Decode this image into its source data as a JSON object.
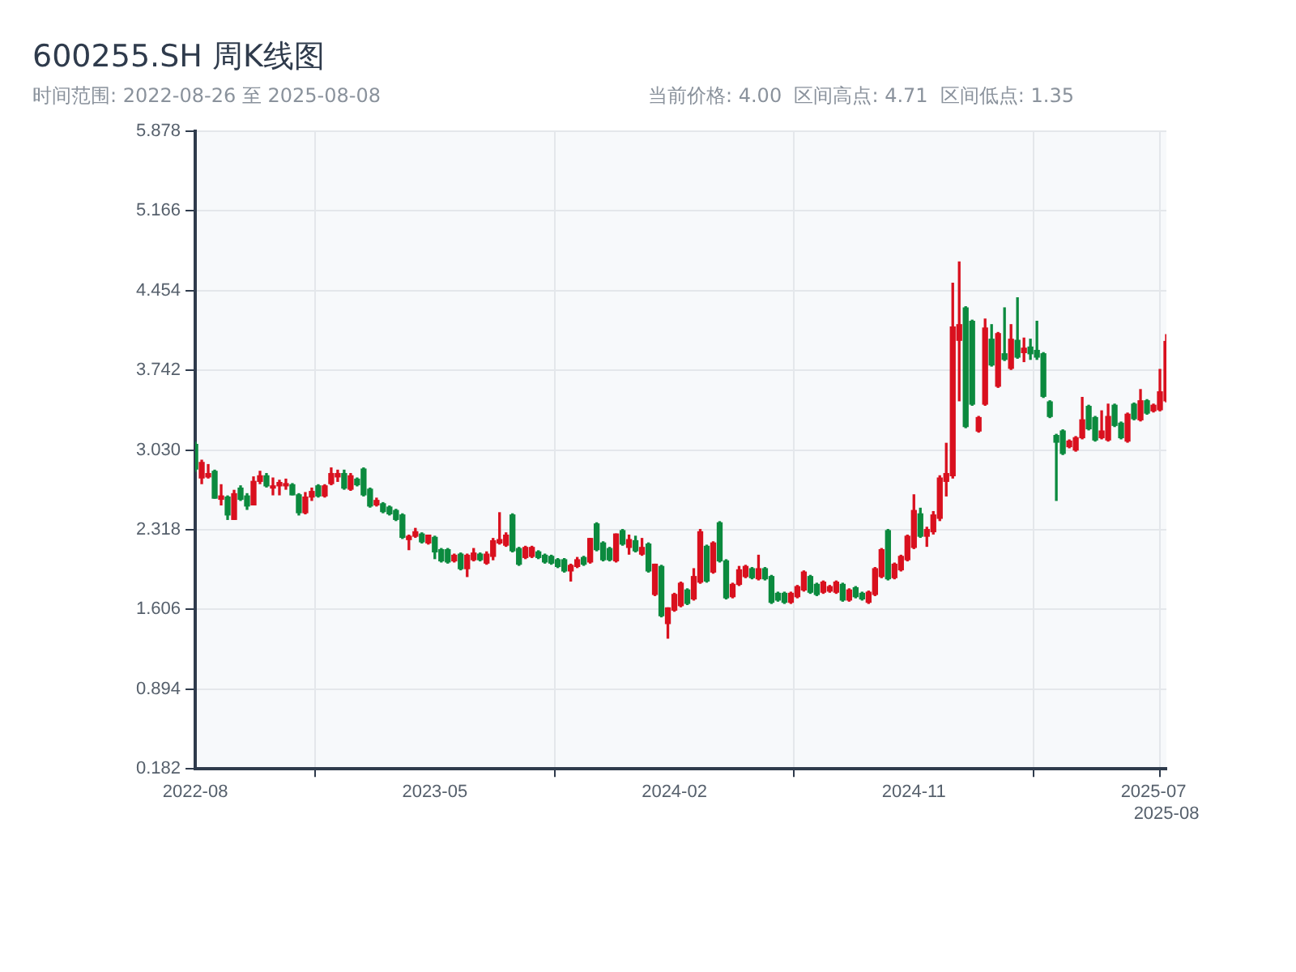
{
  "chart_data": {
    "type": "candlestick",
    "title": "600255.SH 周K线图",
    "subtitle": "时间范围: 2022-08-26 至 2025-08-08",
    "annotations": [
      "当前价格: 4.00  区间高点: 4.71  区间低点: 1.35"
    ],
    "categories": [
      "2022-08",
      null,
      null,
      null,
      null,
      null,
      null,
      null,
      null,
      null,
      null,
      null,
      null,
      null,
      null,
      null,
      null,
      null,
      null,
      null,
      null,
      null,
      null,
      null,
      null,
      null,
      null,
      null,
      null,
      null,
      null,
      null,
      null,
      null,
      null,
      null,
      null,
      "2023-05",
      null,
      null,
      null,
      null,
      null,
      null,
      null,
      null,
      null,
      null,
      null,
      null,
      null,
      null,
      null,
      null,
      null,
      null,
      null,
      null,
      null,
      null,
      null,
      null,
      null,
      null,
      null,
      null,
      null,
      null,
      null,
      null,
      null,
      null,
      null,
      null,
      "2024-02",
      null,
      null,
      null,
      null,
      null,
      null,
      null,
      null,
      null,
      null,
      null,
      null,
      null,
      null,
      null,
      null,
      null,
      null,
      null,
      null,
      null,
      null,
      null,
      null,
      null,
      null,
      null,
      null,
      null,
      null,
      null,
      null,
      null,
      null,
      null,
      null,
      "2024-11",
      null,
      null,
      null,
      null,
      null,
      null,
      null,
      null,
      null,
      null,
      null,
      null,
      null,
      null,
      null,
      null,
      null,
      null,
      null,
      null,
      null,
      null,
      null,
      null,
      null,
      null,
      null,
      null,
      null,
      null,
      null,
      null,
      null,
      null,
      null,
      null,
      "2025-07",
      null,
      "2025-08"
    ],
    "ohlc": [
      [
        3.08,
        3.1,
        2.84,
        2.86
      ],
      [
        2.78,
        2.94,
        2.73,
        2.92
      ],
      [
        2.79,
        2.9,
        2.78,
        2.82
      ],
      [
        2.84,
        2.85,
        2.6,
        2.6
      ],
      [
        2.59,
        2.72,
        2.54,
        2.62
      ],
      [
        2.61,
        2.62,
        2.41,
        2.45
      ],
      [
        2.41,
        2.67,
        2.41,
        2.64
      ],
      [
        2.69,
        2.71,
        2.58,
        2.59
      ],
      [
        2.62,
        2.64,
        2.5,
        2.53
      ],
      [
        2.54,
        2.79,
        2.54,
        2.75
      ],
      [
        2.75,
        2.84,
        2.73,
        2.8
      ],
      [
        2.8,
        2.82,
        2.7,
        2.71
      ],
      [
        2.69,
        2.78,
        2.63,
        2.71
      ],
      [
        2.71,
        2.76,
        2.63,
        2.74
      ],
      [
        2.71,
        2.77,
        2.68,
        2.73
      ],
      [
        2.72,
        2.73,
        2.63,
        2.63
      ],
      [
        2.63,
        2.64,
        2.45,
        2.47
      ],
      [
        2.47,
        2.65,
        2.46,
        2.61
      ],
      [
        2.61,
        2.69,
        2.58,
        2.66
      ],
      [
        2.71,
        2.72,
        2.61,
        2.62
      ],
      [
        2.62,
        2.72,
        2.61,
        2.71
      ],
      [
        2.73,
        2.87,
        2.72,
        2.82
      ],
      [
        2.79,
        2.85,
        2.75,
        2.82
      ],
      [
        2.82,
        2.85,
        2.68,
        2.69
      ],
      [
        2.68,
        2.82,
        2.67,
        2.8
      ],
      [
        2.77,
        2.78,
        2.71,
        2.72
      ],
      [
        2.86,
        2.87,
        2.62,
        2.63
      ],
      [
        2.68,
        2.69,
        2.52,
        2.53
      ],
      [
        2.54,
        2.6,
        2.53,
        2.58
      ],
      [
        2.55,
        2.56,
        2.47,
        2.48
      ],
      [
        2.52,
        2.53,
        2.45,
        2.46
      ],
      [
        2.49,
        2.5,
        2.4,
        2.41
      ],
      [
        2.45,
        2.46,
        2.24,
        2.25
      ],
      [
        2.23,
        2.27,
        2.14,
        2.26
      ],
      [
        2.26,
        2.33,
        2.25,
        2.3
      ],
      [
        2.28,
        2.29,
        2.2,
        2.21
      ],
      [
        2.2,
        2.27,
        2.19,
        2.27
      ],
      [
        2.25,
        2.26,
        2.06,
        2.12
      ],
      [
        2.14,
        2.15,
        2.03,
        2.04
      ],
      [
        2.14,
        2.15,
        2.02,
        2.03
      ],
      [
        2.04,
        2.1,
        2.03,
        2.09
      ],
      [
        2.1,
        2.11,
        1.96,
        1.97
      ],
      [
        1.97,
        2.1,
        1.9,
        2.09
      ],
      [
        2.05,
        2.15,
        2.04,
        2.11
      ],
      [
        2.1,
        2.11,
        2.04,
        2.05
      ],
      [
        2.02,
        2.12,
        2.01,
        2.1
      ],
      [
        2.08,
        2.24,
        2.05,
        2.22
      ],
      [
        2.2,
        2.47,
        2.19,
        2.23
      ],
      [
        2.18,
        2.29,
        2.17,
        2.27
      ],
      [
        2.45,
        2.46,
        2.12,
        2.13
      ],
      [
        2.15,
        2.16,
        2.0,
        2.01
      ],
      [
        2.07,
        2.17,
        2.06,
        2.16
      ],
      [
        2.08,
        2.17,
        2.07,
        2.16
      ],
      [
        2.12,
        2.13,
        2.06,
        2.07
      ],
      [
        2.09,
        2.1,
        2.02,
        2.03
      ],
      [
        2.08,
        2.09,
        2.01,
        2.02
      ],
      [
        2.05,
        2.06,
        1.98,
        1.99
      ],
      [
        2.05,
        2.06,
        1.94,
        1.95
      ],
      [
        1.95,
        2.01,
        1.86,
        2.0
      ],
      [
        1.99,
        2.07,
        1.98,
        2.05
      ],
      [
        2.07,
        2.08,
        2.0,
        2.01
      ],
      [
        2.03,
        2.24,
        2.02,
        2.24
      ],
      [
        2.37,
        2.38,
        2.13,
        2.14
      ],
      [
        2.2,
        2.21,
        2.04,
        2.05
      ],
      [
        2.15,
        2.16,
        2.04,
        2.05
      ],
      [
        2.04,
        2.28,
        2.03,
        2.28
      ],
      [
        2.31,
        2.32,
        2.18,
        2.19
      ],
      [
        2.16,
        2.27,
        2.1,
        2.23
      ],
      [
        2.22,
        2.26,
        2.12,
        2.13
      ],
      [
        2.1,
        2.24,
        2.09,
        2.16
      ],
      [
        2.19,
        2.2,
        1.94,
        1.95
      ],
      [
        1.74,
        2.01,
        1.73,
        2.01
      ],
      [
        1.99,
        2.0,
        1.54,
        1.55
      ],
      [
        1.48,
        1.62,
        1.35,
        1.62
      ],
      [
        1.6,
        1.75,
        1.59,
        1.74
      ],
      [
        1.64,
        1.85,
        1.63,
        1.84
      ],
      [
        1.78,
        1.79,
        1.65,
        1.66
      ],
      [
        1.7,
        1.97,
        1.69,
        1.9
      ],
      [
        1.85,
        2.32,
        1.84,
        2.3
      ],
      [
        2.17,
        2.18,
        1.85,
        1.86
      ],
      [
        1.94,
        2.21,
        1.93,
        2.2
      ],
      [
        2.38,
        2.39,
        2.03,
        2.04
      ],
      [
        2.04,
        2.05,
        1.7,
        1.71
      ],
      [
        1.72,
        1.84,
        1.71,
        1.83
      ],
      [
        1.83,
        1.99,
        1.82,
        1.96
      ],
      [
        1.9,
        2.0,
        1.89,
        1.99
      ],
      [
        1.97,
        1.98,
        1.88,
        1.89
      ],
      [
        1.88,
        2.09,
        1.87,
        1.97
      ],
      [
        1.97,
        1.98,
        1.87,
        1.88
      ],
      [
        1.9,
        1.91,
        1.66,
        1.67
      ],
      [
        1.75,
        1.76,
        1.68,
        1.69
      ],
      [
        1.75,
        1.76,
        1.66,
        1.67
      ],
      [
        1.67,
        1.76,
        1.66,
        1.75
      ],
      [
        1.72,
        1.82,
        1.71,
        1.81
      ],
      [
        1.78,
        1.95,
        1.77,
        1.94
      ],
      [
        1.9,
        1.91,
        1.75,
        1.76
      ],
      [
        1.83,
        1.84,
        1.73,
        1.74
      ],
      [
        1.76,
        1.86,
        1.75,
        1.85
      ],
      [
        1.77,
        1.82,
        1.76,
        1.81
      ],
      [
        1.76,
        1.86,
        1.75,
        1.85
      ],
      [
        1.83,
        1.84,
        1.68,
        1.69
      ],
      [
        1.69,
        1.79,
        1.68,
        1.78
      ],
      [
        1.8,
        1.81,
        1.71,
        1.72
      ],
      [
        1.75,
        1.76,
        1.69,
        1.7
      ],
      [
        1.67,
        1.77,
        1.66,
        1.76
      ],
      [
        1.74,
        1.98,
        1.73,
        1.97
      ],
      [
        1.9,
        2.15,
        1.89,
        2.14
      ],
      [
        2.31,
        2.32,
        1.87,
        1.88
      ],
      [
        1.89,
        2.02,
        1.88,
        2.01
      ],
      [
        1.96,
        2.09,
        1.95,
        2.08
      ],
      [
        2.05,
        2.27,
        2.04,
        2.26
      ],
      [
        2.16,
        2.63,
        2.15,
        2.49
      ],
      [
        2.46,
        2.51,
        2.25,
        2.26
      ],
      [
        2.26,
        2.34,
        2.17,
        2.32
      ],
      [
        2.3,
        2.48,
        2.28,
        2.45
      ],
      [
        2.42,
        2.8,
        2.4,
        2.78
      ],
      [
        2.75,
        3.09,
        2.62,
        2.82
      ],
      [
        2.8,
        4.52,
        2.78,
        4.13
      ],
      [
        4.01,
        4.71,
        3.47,
        4.15
      ],
      [
        4.3,
        4.31,
        3.23,
        3.24
      ],
      [
        4.18,
        4.19,
        3.43,
        3.44
      ],
      [
        3.2,
        3.33,
        3.19,
        3.32
      ],
      [
        3.44,
        4.2,
        3.43,
        4.12
      ],
      [
        4.02,
        4.15,
        3.78,
        3.79
      ],
      [
        3.6,
        4.08,
        3.59,
        4.07
      ],
      [
        3.89,
        4.3,
        3.83,
        3.84
      ],
      [
        3.76,
        4.15,
        3.75,
        4.02
      ],
      [
        4.01,
        4.39,
        3.85,
        3.86
      ],
      [
        3.9,
        4.03,
        3.82,
        3.94
      ],
      [
        3.95,
        4.02,
        3.84,
        3.89
      ],
      [
        3.92,
        4.18,
        3.84,
        3.86
      ],
      [
        3.89,
        3.9,
        3.5,
        3.51
      ],
      [
        3.46,
        3.47,
        3.32,
        3.33
      ],
      [
        3.16,
        3.17,
        2.58,
        3.1
      ],
      [
        3.2,
        3.21,
        2.99,
        3.0
      ],
      [
        3.06,
        3.12,
        3.05,
        3.11
      ],
      [
        3.03,
        3.15,
        3.02,
        3.14
      ],
      [
        3.14,
        3.5,
        3.13,
        3.3
      ],
      [
        3.42,
        3.43,
        3.21,
        3.22
      ],
      [
        3.32,
        3.33,
        3.11,
        3.12
      ],
      [
        3.14,
        3.38,
        3.13,
        3.2
      ],
      [
        3.12,
        3.44,
        3.11,
        3.33
      ],
      [
        3.43,
        3.44,
        3.24,
        3.25
      ],
      [
        3.27,
        3.28,
        3.13,
        3.14
      ],
      [
        3.11,
        3.36,
        3.1,
        3.35
      ],
      [
        3.44,
        3.45,
        3.3,
        3.31
      ],
      [
        3.3,
        3.57,
        3.29,
        3.47
      ],
      [
        3.47,
        3.48,
        3.35,
        3.36
      ],
      [
        3.38,
        3.44,
        3.37,
        3.43
      ],
      [
        3.39,
        3.75,
        3.38,
        3.55
      ],
      [
        3.47,
        4.06,
        3.46,
        4.0
      ]
    ],
    "colors": [
      "#0b8a3e",
      "#d9101e",
      "#d9101e",
      "#0b8a3e",
      "#d9101e",
      "#0b8a3e",
      "#d9101e",
      "#0b8a3e",
      "#0b8a3e",
      "#d9101e",
      "#d9101e",
      "#0b8a3e",
      "#d9101e",
      "#d9101e",
      "#d9101e",
      "#0b8a3e",
      "#0b8a3e",
      "#d9101e",
      "#d9101e",
      "#0b8a3e",
      "#d9101e",
      "#d9101e",
      "#d9101e",
      "#0b8a3e",
      "#d9101e",
      "#0b8a3e",
      "#0b8a3e",
      "#0b8a3e",
      "#d9101e",
      "#0b8a3e",
      "#0b8a3e",
      "#0b8a3e",
      "#0b8a3e",
      "#d9101e",
      "#d9101e",
      "#0b8a3e",
      "#d9101e",
      "#0b8a3e",
      "#0b8a3e",
      "#0b8a3e",
      "#d9101e",
      "#0b8a3e",
      "#d9101e",
      "#d9101e",
      "#0b8a3e",
      "#d9101e",
      "#d9101e",
      "#d9101e",
      "#d9101e",
      "#0b8a3e",
      "#0b8a3e",
      "#d9101e",
      "#d9101e",
      "#0b8a3e",
      "#0b8a3e",
      "#0b8a3e",
      "#0b8a3e",
      "#0b8a3e",
      "#d9101e",
      "#d9101e",
      "#0b8a3e",
      "#d9101e",
      "#0b8a3e",
      "#0b8a3e",
      "#0b8a3e",
      "#d9101e",
      "#0b8a3e",
      "#d9101e",
      "#0b8a3e",
      "#d9101e",
      "#0b8a3e",
      "#d9101e",
      "#0b8a3e",
      "#d9101e",
      "#d9101e",
      "#d9101e",
      "#0b8a3e",
      "#d9101e",
      "#d9101e",
      "#0b8a3e",
      "#d9101e",
      "#0b8a3e",
      "#0b8a3e",
      "#d9101e",
      "#d9101e",
      "#d9101e",
      "#0b8a3e",
      "#d9101e",
      "#0b8a3e",
      "#0b8a3e",
      "#0b8a3e",
      "#0b8a3e",
      "#d9101e",
      "#d9101e",
      "#d9101e",
      "#0b8a3e",
      "#0b8a3e",
      "#d9101e",
      "#d9101e",
      "#d9101e",
      "#0b8a3e",
      "#d9101e",
      "#0b8a3e",
      "#0b8a3e",
      "#d9101e",
      "#d9101e",
      "#d9101e",
      "#0b8a3e",
      "#d9101e",
      "#d9101e",
      "#d9101e",
      "#d9101e",
      "#0b8a3e",
      "#d9101e",
      "#d9101e",
      "#d9101e",
      "#d9101e",
      "#d9101e",
      "#d9101e",
      "#0b8a3e",
      "#0b8a3e",
      "#d9101e",
      "#d9101e",
      "#0b8a3e",
      "#d9101e",
      "#0b8a3e",
      "#d9101e",
      "#0b8a3e",
      "#d9101e",
      "#0b8a3e",
      "#0b8a3e",
      "#0b8a3e",
      "#0b8a3e",
      "#0b8a3e",
      "#0b8a3e",
      "#d9101e",
      "#d9101e",
      "#d9101e",
      "#0b8a3e",
      "#0b8a3e",
      "#d9101e",
      "#d9101e",
      "#0b8a3e",
      "#0b8a3e",
      "#d9101e",
      "#0b8a3e",
      "#d9101e",
      "#0b8a3e",
      "#d9101e",
      "#d9101e",
      "#d9101e"
    ],
    "ylim": [
      0.182,
      5.878
    ],
    "yticks": [
      0.182,
      0.894,
      1.606,
      2.318,
      {
        "value": 3.03,
        "label": "3.030"
      },
      3.742,
      4.454,
      5.166,
      5.878
    ],
    "grid": true
  }
}
